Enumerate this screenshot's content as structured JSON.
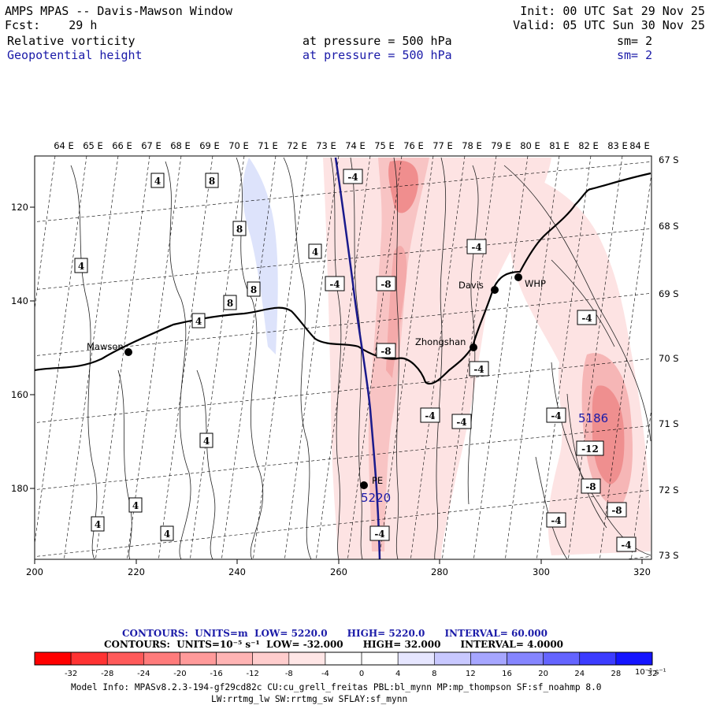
{
  "header": {
    "title": "AMPS MPAS -- Davis-Mawson Window",
    "fcst_label": "Fcst:",
    "fcst_value": "29 h",
    "init": "Init: 00 UTC Sat 29 Nov 25",
    "valid": "Valid: 05 UTC Sun 30 Nov 25",
    "fields": [
      {
        "name": "Relative vorticity",
        "level_text": "at pressure =",
        "level_value": "500 hPa",
        "smooth": "sm= 2",
        "color": "#000000"
      },
      {
        "name": "Geopotential height",
        "level_text": "at pressure =",
        "level_value": "500 hPa",
        "smooth": "sm= 2",
        "color": "#1a1aa8"
      }
    ]
  },
  "map": {
    "lon_labels": [
      "64 E",
      "65 E",
      "66 E",
      "67 E",
      "68 E",
      "69 E",
      "70 E",
      "71 E",
      "72 E",
      "73 E",
      "74 E",
      "75 E",
      "76 E",
      "77 E",
      "78 E",
      "79 E",
      "80 E",
      "81 E",
      "82 E",
      "83 E",
      "84 E"
    ],
    "lat_labels": [
      "67 S",
      "68 S",
      "69 S",
      "70 S",
      "71 S",
      "72 S",
      "73 S"
    ],
    "grid_x_labels": [
      "200",
      "220",
      "240",
      "260",
      "280",
      "300",
      "320"
    ],
    "grid_y_labels": [
      "120",
      "140",
      "160",
      "180"
    ],
    "stations": [
      {
        "name": "Mawson"
      },
      {
        "name": "Davis"
      },
      {
        "name": "WHP"
      },
      {
        "name": "Zhongshan"
      },
      {
        "name": "PE"
      }
    ],
    "height_labels": [
      "5186",
      "5220"
    ],
    "vort_labels": [
      "4",
      "8",
      "8",
      "8",
      "8",
      "4",
      "4",
      "4",
      "4",
      "4",
      "4",
      "4",
      "-4",
      "-4",
      "-8",
      "-8",
      "-4",
      "-4",
      "-4",
      "-4",
      "-4",
      "-4",
      "-4",
      "-12",
      "-8",
      "-8",
      "-4",
      "-4"
    ],
    "colors": {
      "height_contour": "#1a1a8c",
      "neg_shading": "#f5b8b8",
      "neg_shading_strong": "#ee8c8c",
      "pos_shading": "#dde3fb"
    }
  },
  "contour_info": {
    "line1": {
      "label": "CONTOURS:",
      "units": "UNITS=m",
      "low": "LOW=",
      "low_val": "5220.0",
      "high": "HIGH=",
      "high_val": "5220.0",
      "interval": "INTERVAL=",
      "interval_val": "60.000"
    },
    "line2": {
      "label": "CONTOURS:",
      "units": "UNITS=10⁻⁵ s⁻¹",
      "low": "LOW=",
      "low_val": "-32.000",
      "high": "HIGH=",
      "high_val": "32.000",
      "interval": "INTERVAL=",
      "interval_val": "4.0000"
    }
  },
  "colorbar": {
    "labels": [
      "-32",
      "-28",
      "-24",
      "-20",
      "-16",
      "-12",
      "-8",
      "-4",
      "0",
      "4",
      "8",
      "12",
      "16",
      "20",
      "24",
      "28",
      "32"
    ],
    "unit": "10⁻⁵ s⁻¹",
    "colors": [
      "#ff0000",
      "#ff3333",
      "#ff5a5a",
      "#ff7b7b",
      "#ff9a9a",
      "#ffb4b4",
      "#ffcdcd",
      "#ffe6e6",
      "#ffffff",
      "#ffffff",
      "#e6e6ff",
      "#c8c8ff",
      "#a6a6ff",
      "#8585ff",
      "#6464ff",
      "#3c3cff",
      "#1414ff"
    ]
  },
  "model_info": {
    "line1": "Model Info: MPASv8.2.3-194-gf29cd82c CU:cu_grell_freitas PBL:bl_mynn MP:mp_thompson SF:sf_noahmp 8.0",
    "line2": "LW:rrtmg_lw SW:rrtmg_sw SFLAY:sf_mynn"
  }
}
